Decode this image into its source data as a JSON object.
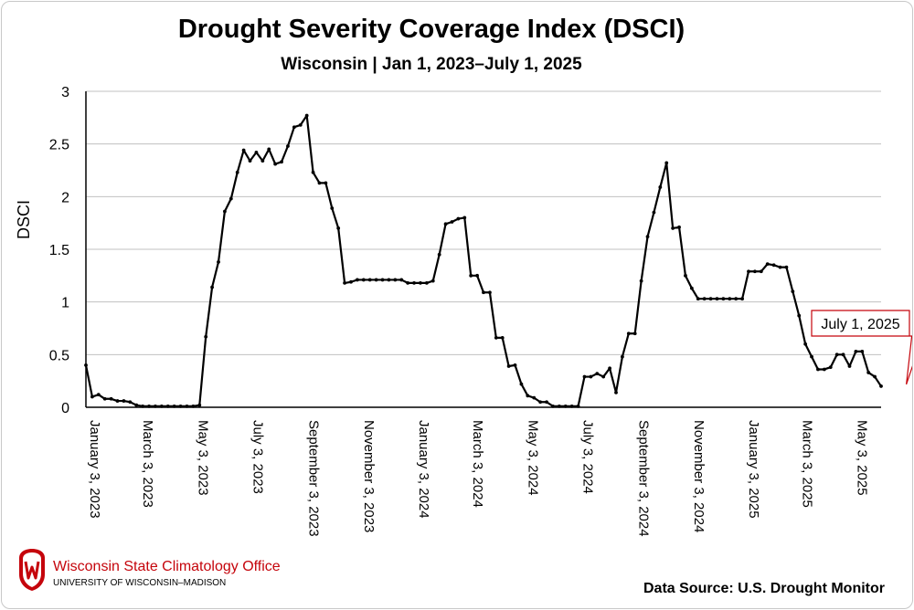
{
  "header": {
    "title": "Drought Severity Coverage Index (DSCI)",
    "subtitle": "Wisconsin | Jan 1, 2023–July 1, 2025"
  },
  "footer": {
    "org_name": "Wisconsin State Climatology Office",
    "org_sub": "UNIVERSITY OF WISCONSIN–MADISON",
    "source": "Data Source: U.S. Drought Monitor"
  },
  "colors": {
    "line": "#000000",
    "grid": "#c0c0c0",
    "annotation_border": "#c5050c",
    "logo": "#c5050c"
  },
  "chart_data": {
    "type": "line",
    "title": "Drought Severity Coverage Index (DSCI)",
    "subtitle": "Wisconsin | Jan 1, 2023–July 1, 2025",
    "xlabel": "",
    "ylabel": "DSCI",
    "ylim": [
      0,
      3
    ],
    "yticks": [
      "0",
      "0.5",
      "1",
      "1.5",
      "2",
      "2.5",
      "3"
    ],
    "grid": true,
    "x_start": "2023-01-03",
    "x_step_days": 7,
    "xticks": [
      {
        "date": "2023-01-03",
        "label": "January 3, 2023"
      },
      {
        "date": "2023-03-03",
        "label": "March 3, 2023"
      },
      {
        "date": "2023-05-03",
        "label": "May 3, 2023"
      },
      {
        "date": "2023-07-03",
        "label": "July 3, 2023"
      },
      {
        "date": "2023-09-03",
        "label": "September 3, 2023"
      },
      {
        "date": "2023-11-03",
        "label": "November 3, 2023"
      },
      {
        "date": "2024-01-03",
        "label": "January 3, 2024"
      },
      {
        "date": "2024-03-03",
        "label": "March 3, 2024"
      },
      {
        "date": "2024-05-03",
        "label": "May 3, 2024"
      },
      {
        "date": "2024-07-03",
        "label": "July 3, 2024"
      },
      {
        "date": "2024-09-03",
        "label": "September 3, 2024"
      },
      {
        "date": "2024-11-03",
        "label": "November 3, 2024"
      },
      {
        "date": "2025-01-03",
        "label": "January 3, 2025"
      },
      {
        "date": "2025-03-03",
        "label": "March 3, 2025"
      },
      {
        "date": "2025-05-03",
        "label": "May 3, 2025"
      }
    ],
    "series": [
      {
        "values": [
          0.4,
          0.1,
          0.12,
          0.08,
          0.08,
          0.06,
          0.06,
          0.05,
          0.02,
          0.01,
          0.01,
          0.01,
          0.01,
          0.01,
          0.01,
          0.01,
          0.01,
          0.01,
          0.02,
          0.67,
          1.14,
          1.38,
          1.86,
          1.98,
          2.23,
          2.44,
          2.34,
          2.42,
          2.34,
          2.45,
          2.31,
          2.33,
          2.48,
          2.66,
          2.68,
          2.77,
          2.23,
          2.13,
          2.13,
          1.89,
          1.7,
          1.18,
          1.19,
          1.21,
          1.21,
          1.21,
          1.21,
          1.21,
          1.21,
          1.21,
          1.21,
          1.18,
          1.18,
          1.18,
          1.18,
          1.2,
          1.45,
          1.74,
          1.76,
          1.79,
          1.8,
          1.25,
          1.25,
          1.09,
          1.09,
          0.66,
          0.66,
          0.39,
          0.4,
          0.22,
          0.11,
          0.09,
          0.05,
          0.05,
          0.01,
          0.01,
          0.01,
          0.01,
          0.01,
          0.29,
          0.29,
          0.32,
          0.29,
          0.37,
          0.14,
          0.48,
          0.7,
          0.7,
          1.2,
          1.62,
          1.85,
          2.09,
          2.32,
          1.7,
          1.71,
          1.25,
          1.13,
          1.03,
          1.03,
          1.03,
          1.03,
          1.03,
          1.03,
          1.03,
          1.03,
          1.29,
          1.29,
          1.29,
          1.36,
          1.35,
          1.33,
          1.33,
          1.1,
          0.87,
          0.6,
          0.48,
          0.36,
          0.36,
          0.38,
          0.5,
          0.5,
          0.39,
          0.53,
          0.53,
          0.33,
          0.29,
          0.2
        ]
      }
    ],
    "annotations": [
      {
        "text": "July 1, 2025",
        "date": "2025-07-01",
        "value": 0.2
      }
    ]
  }
}
